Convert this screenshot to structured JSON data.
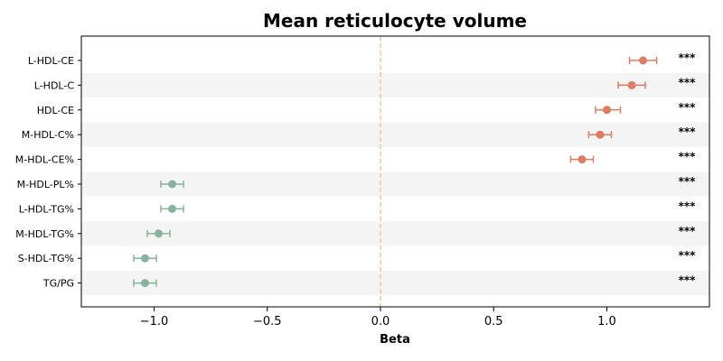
{
  "chart_data": {
    "type": "forest",
    "title": "Mean reticulocyte volume",
    "xlabel": "Beta",
    "ylabel": "",
    "xlim": [
      -1.32,
      1.45
    ],
    "xticks": [
      -1.0,
      -0.5,
      0.0,
      0.5,
      1.0
    ],
    "xtick_labels": [
      "−1.0",
      "−0.5",
      "0.0",
      "0.5",
      "1.0"
    ],
    "reference_line": 0.0,
    "colors": {
      "positive": "#e07b63",
      "negative": "#85b39c",
      "reference": "#f5c77e",
      "band": "#f4f4f4"
    },
    "rows": [
      {
        "label": "L-HDL-CE",
        "beta": 1.16,
        "lower": 1.1,
        "upper": 1.22,
        "sig": "***"
      },
      {
        "label": "L-HDL-C",
        "beta": 1.11,
        "lower": 1.05,
        "upper": 1.17,
        "sig": "***"
      },
      {
        "label": "HDL-CE",
        "beta": 1.0,
        "lower": 0.95,
        "upper": 1.06,
        "sig": "***"
      },
      {
        "label": "M-HDL-C%",
        "beta": 0.97,
        "lower": 0.92,
        "upper": 1.02,
        "sig": "***"
      },
      {
        "label": "M-HDL-CE%",
        "beta": 0.89,
        "lower": 0.84,
        "upper": 0.94,
        "sig": "***"
      },
      {
        "label": "M-HDL-PL%",
        "beta": -0.92,
        "lower": -0.97,
        "upper": -0.87,
        "sig": "***"
      },
      {
        "label": "L-HDL-TG%",
        "beta": -0.92,
        "lower": -0.97,
        "upper": -0.87,
        "sig": "***"
      },
      {
        "label": "M-HDL-TG%",
        "beta": -0.98,
        "lower": -1.03,
        "upper": -0.93,
        "sig": "***"
      },
      {
        "label": "S-HDL-TG%",
        "beta": -1.04,
        "lower": -1.09,
        "upper": -0.99,
        "sig": "***"
      },
      {
        "label": "TG/PG",
        "beta": -1.04,
        "lower": -1.09,
        "upper": -0.99,
        "sig": "***"
      }
    ]
  }
}
